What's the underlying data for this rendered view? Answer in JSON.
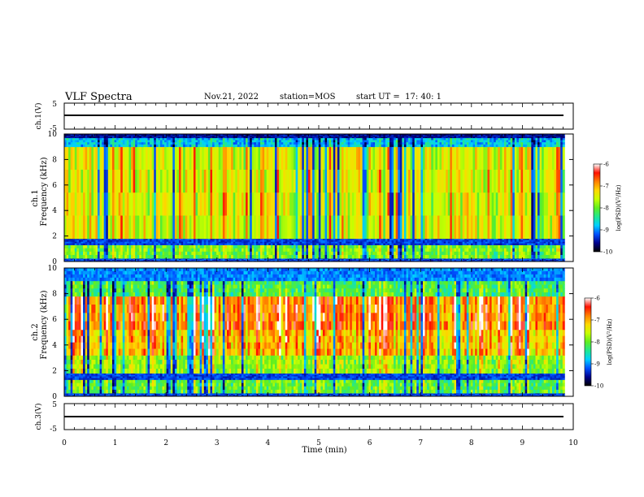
{
  "header": {
    "title": "VLF Spectra",
    "date": "Nov.21, 2022",
    "station": "station=MOS",
    "start_label": "start  UT  =",
    "start_time": "17: 40: 1"
  },
  "chart_data": [
    {
      "type": "line",
      "panel": "ch1-waveform",
      "ylabel": "ch.1(V)",
      "ylim": [
        -5,
        5
      ],
      "yticks": [
        "5",
        "-5"
      ],
      "baseline": 0,
      "grid": false
    },
    {
      "type": "heatmap",
      "panel": "ch1-spectrogram",
      "ylabel_line1": "ch.1",
      "ylabel_line2": "Frequency (kHz)",
      "ylim": [
        0,
        10
      ],
      "yticks": [
        "0",
        "2",
        "4",
        "6",
        "8",
        "10"
      ],
      "xlim": [
        0,
        10
      ],
      "data_end_min": 9.83,
      "colorbar": {
        "label": "log(PSD)(V²/Hz)",
        "range": [
          -10,
          -6
        ],
        "ticks": [
          "-6",
          "-7",
          "-8",
          "-9",
          "-10"
        ]
      },
      "colormap": [
        "#000000",
        "#00008c",
        "#0050ff",
        "#00d0ff",
        "#20e890",
        "#60ee20",
        "#c8ff00",
        "#ffd800",
        "#ff8000",
        "#ff1000",
        "#ffffff"
      ],
      "bands_khz": [
        {
          "from": 0.0,
          "to": 0.25,
          "level": 0.12
        },
        {
          "from": 0.25,
          "to": 1.3,
          "level": 0.5
        },
        {
          "from": 1.3,
          "to": 1.8,
          "level": 0.12
        },
        {
          "from": 1.8,
          "to": 9.0,
          "level": 0.62
        },
        {
          "from": 9.0,
          "to": 9.7,
          "level": 0.3
        },
        {
          "from": 9.7,
          "to": 10.0,
          "level": 0.05
        }
      ]
    },
    {
      "type": "heatmap",
      "panel": "ch2-spectrogram",
      "ylabel_line1": "ch.2",
      "ylabel_line2": "Frequency (kHz)",
      "ylim": [
        0,
        10
      ],
      "yticks": [
        "0",
        "2",
        "4",
        "6",
        "8",
        "10"
      ],
      "xlim": [
        0,
        10
      ],
      "data_end_min": 9.83,
      "colorbar": {
        "label": "log(PSD)(V²/Hz)",
        "range": [
          -10,
          -6
        ],
        "ticks": [
          "-6",
          "-7",
          "-8",
          "-9",
          "-10"
        ]
      },
      "bands_khz": [
        {
          "from": 0.0,
          "to": 0.25,
          "level": 0.12
        },
        {
          "from": 0.25,
          "to": 1.3,
          "level": 0.48
        },
        {
          "from": 1.3,
          "to": 1.8,
          "level": 0.12
        },
        {
          "from": 1.8,
          "to": 3.2,
          "level": 0.55
        },
        {
          "from": 3.2,
          "to": 5.2,
          "level": 0.72
        },
        {
          "from": 5.2,
          "to": 7.8,
          "level": 0.8
        },
        {
          "from": 7.8,
          "to": 9.0,
          "level": 0.45
        },
        {
          "from": 9.0,
          "to": 10.0,
          "level": 0.18
        }
      ]
    },
    {
      "type": "line",
      "panel": "ch3-waveform",
      "ylabel": "ch.3(V)",
      "ylim": [
        -5,
        5
      ],
      "yticks": [
        "5",
        "-5"
      ],
      "baseline": 0,
      "grid": false
    }
  ],
  "xaxis": {
    "label": "Time  (min)",
    "range": [
      0,
      10
    ],
    "ticks": [
      "0",
      "1",
      "2",
      "3",
      "4",
      "5",
      "6",
      "7",
      "8",
      "9",
      "10"
    ]
  }
}
